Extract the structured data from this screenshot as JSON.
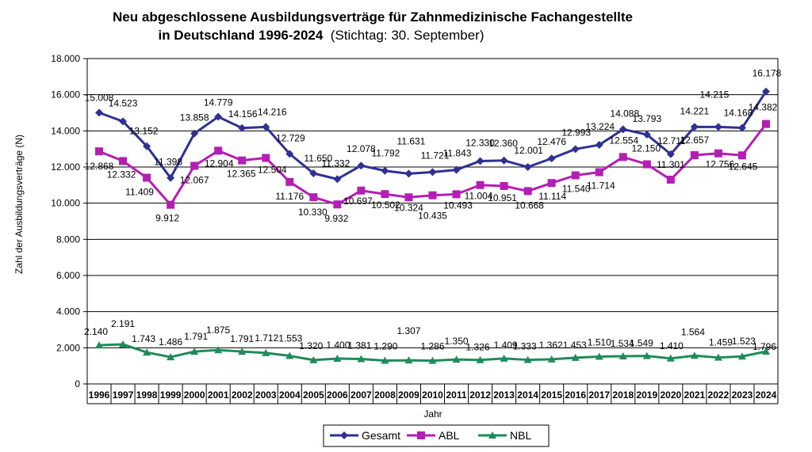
{
  "chart_data": {
    "type": "line",
    "title": "Neu abgeschlossene Ausbildungsverträge für Zahnmedizinische Fachangestellte",
    "title_line2": "in Deutschland 1996-2024",
    "subtitle": "(Stichtag: 30. September)",
    "xlabel": "Jahr",
    "ylabel": "Zahl der Ausbildungsverträge  (N)",
    "ylim": [
      0,
      18000
    ],
    "yticks": [
      "0",
      "2.000",
      "4.000",
      "6.000",
      "8.000",
      "10.000",
      "12.000",
      "14.000",
      "16.000",
      "18.000"
    ],
    "grid": true,
    "legend_position": "bottom",
    "categories": [
      "1996",
      "1997",
      "1998",
      "1999",
      "2000",
      "2001",
      "2002",
      "2003",
      "2004",
      "2005",
      "2006",
      "2007",
      "2008",
      "2009",
      "2010",
      "2011",
      "2012",
      "2013",
      "2014",
      "2015",
      "2016",
      "2017",
      "2018",
      "2019",
      "2020",
      "2021",
      "2022",
      "2023",
      "2024"
    ],
    "series": [
      {
        "name": "Gesamt",
        "color": "#2e3192",
        "marker": "diamond",
        "values": [
          15008,
          14523,
          13152,
          11398,
          13858,
          14779,
          14156,
          14216,
          12729,
          11650,
          11332,
          12078,
          11792,
          11631,
          11721,
          11843,
          12330,
          12360,
          12001,
          12476,
          12993,
          13224,
          14088,
          13793,
          12711,
          14221,
          14215,
          14168,
          16178
        ],
        "labels": [
          "15.008",
          "14.523",
          "13.152",
          "11.398",
          "13.858",
          "14.779",
          "14.156",
          "14.216",
          "12.729",
          "11.650",
          "11.332",
          "12.078",
          "11.792",
          "11.631",
          "11.721",
          "11.843",
          "12.330",
          "12.360",
          "12.001",
          "12.476",
          "12.993",
          "13.224",
          "14.088",
          "13.793",
          "12.711",
          "14.221",
          "14.215",
          "14.168",
          "16.178"
        ]
      },
      {
        "name": "ABL",
        "color": "#b41eb4",
        "marker": "square",
        "values": [
          12868,
          12332,
          11409,
          9912,
          12067,
          12904,
          12365,
          12504,
          11176,
          10330,
          9932,
          10697,
          10502,
          10324,
          10435,
          10493,
          11004,
          10951,
          10668,
          11114,
          11540,
          11714,
          12554,
          12150,
          11301,
          12657,
          12756,
          12645,
          14382
        ],
        "labels": [
          "12.868",
          "12.332",
          "11.409",
          "9.912",
          "12.067",
          "12.904",
          "12.365",
          "12.504",
          "11.176",
          "10.330",
          "9.932",
          "10.697",
          "10.502",
          "10.324",
          "10.435",
          "10.493",
          "11.004",
          "10.951",
          "10.668",
          "11.114",
          "11.540",
          "11.714",
          "12.554",
          "12.150",
          "11.301",
          "12.657",
          "12.756",
          "12.645",
          "14.382"
        ]
      },
      {
        "name": "NBL",
        "color": "#1e8c5a",
        "marker": "triangle",
        "values": [
          2140,
          2191,
          1743,
          1486,
          1791,
          1875,
          1791,
          1712,
          1553,
          1320,
          1400,
          1381,
          1290,
          1307,
          1286,
          1350,
          1326,
          1409,
          1333,
          1362,
          1453,
          1510,
          1534,
          1549,
          1410,
          1564,
          1459,
          1523,
          1796
        ],
        "labels": [
          "2.140",
          "2.191",
          "1.743",
          "1.486",
          "1.791",
          "1.875",
          "1.791",
          "1.712",
          "1.553",
          "1.320",
          "1.400",
          "1.381",
          "1.290",
          "1.307",
          "1.286",
          "1.350",
          "1.326",
          "1.409",
          "1.333",
          "1.362",
          "1.453",
          "1.510",
          "1.534",
          "1.549",
          "1.410",
          "1.564",
          "1.459",
          "1.523",
          "1.796"
        ]
      }
    ]
  }
}
